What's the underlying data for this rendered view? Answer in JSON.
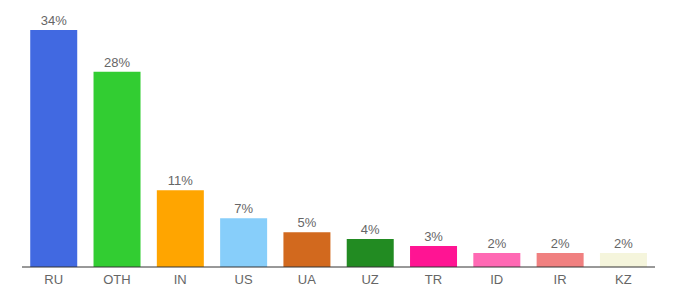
{
  "chart_data": {
    "type": "bar",
    "categories": [
      "RU",
      "OTH",
      "IN",
      "US",
      "UA",
      "UZ",
      "TR",
      "ID",
      "IR",
      "KZ"
    ],
    "values": [
      34,
      28,
      11,
      7,
      5,
      4,
      3,
      2,
      2,
      2
    ],
    "value_labels": [
      "34%",
      "28%",
      "11%",
      "7%",
      "5%",
      "4%",
      "3%",
      "2%",
      "2%",
      "2%"
    ],
    "colors": [
      "#4169e1",
      "#32cd32",
      "#ffa500",
      "#87cefa",
      "#d2691e",
      "#228b22",
      "#ff1493",
      "#ff69b4",
      "#f08080",
      "#f5f5dc"
    ],
    "ylim": [
      0,
      34
    ],
    "data_labels": true,
    "tick_labels": "x"
  }
}
